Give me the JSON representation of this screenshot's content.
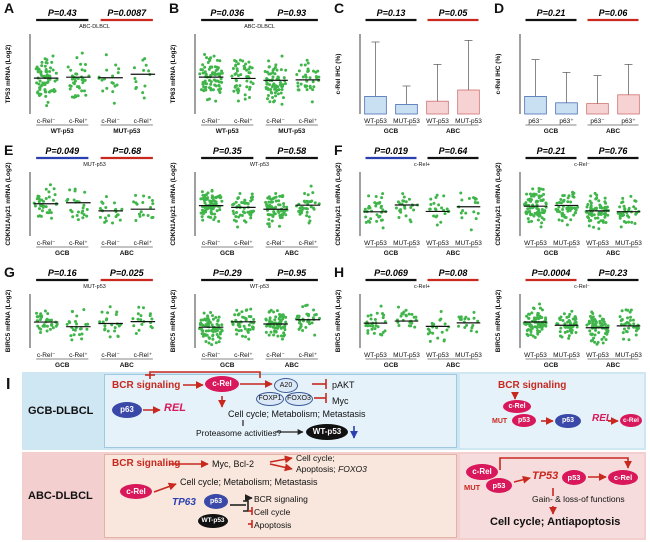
{
  "panels": {
    "A": {
      "label": "A",
      "p1": "P=0.43",
      "p2": "P=0.0087",
      "subtitle": "ABC-DLBCL",
      "ylabel": "TP53 mRNA (Log2)",
      "ticks": [
        "c-Rel⁻",
        "c-Rel⁺",
        "c-Rel⁻",
        "c-Rel⁺"
      ],
      "groups": [
        "WT-p53",
        "MUT-p53"
      ]
    },
    "B": {
      "label": "B",
      "p1": "P=0.036",
      "p2": "P=0.93",
      "subtitle": "ABC-DLBCL",
      "ylabel": "TP63 mRNA (Log2)",
      "ticks": [
        "c-Rel⁻",
        "c-Rel⁺",
        "c-Rel⁻",
        "c-Rel⁺"
      ],
      "groups": [
        "WT-p53",
        "MUT-p53"
      ]
    },
    "C": {
      "label": "C",
      "p1": "P=0.13",
      "p2": "P=0.05",
      "ylabel": "c-Rel IHC (%)",
      "ticks": [
        "WT-p53",
        "MUT-p53",
        "WT-p53",
        "MUT-p53"
      ],
      "groups": [
        "GCB",
        "ABC"
      ]
    },
    "D": {
      "label": "D",
      "p1": "P=0.21",
      "p2": "P=0.06",
      "ylabel": "c-Rel IHC (%)",
      "ticks": [
        "p63⁻",
        "p63⁺",
        "p63⁻",
        "p63⁺"
      ],
      "groups": [
        "GCB",
        "ABC"
      ]
    },
    "E1": {
      "label": "E",
      "p1": "P=0.049",
      "p2": "P=0.68",
      "subtitle": "MUT-p53",
      "ylabel": "CDKN1A/p21 mRNA (Log2)",
      "ticks": [
        "c-Rel⁻",
        "c-Rel⁺",
        "c-Rel⁻",
        "c-Rel⁺"
      ],
      "groups": [
        "GCB",
        "ABC"
      ]
    },
    "E2": {
      "p1": "P=0.35",
      "p2": "P=0.58",
      "subtitle": "WT-p53",
      "ylabel": "CDKN1A/p21 mRNA (Log2)",
      "ticks": [
        "c-Rel⁻",
        "c-Rel⁺",
        "c-Rel⁻",
        "c-Rel⁺"
      ],
      "groups": [
        "GCB",
        "ABC"
      ]
    },
    "F1": {
      "label": "F",
      "p1": "P=0.019",
      "p2": "P=0.64",
      "subtitle": "c-Rel+",
      "ylabel": "CDKN1A/p21 mRNA (Log2)",
      "ticks": [
        "WT-p53",
        "MUT-p53",
        "WT-p53",
        "MUT-p53"
      ],
      "groups": [
        "GCB",
        "ABC"
      ]
    },
    "F2": {
      "p1": "P=0.21",
      "p2": "P=0.76",
      "subtitle": "c-Rel⁻",
      "ylabel": "CDKN1A/p21 mRNA (Log2)",
      "ticks": [
        "WT-p53",
        "MUT-p53",
        "WT-p53",
        "MUT-p53"
      ],
      "groups": [
        "GCB",
        "ABC"
      ]
    },
    "G1": {
      "label": "G",
      "p1": "P=0.16",
      "p2": "P=0.025",
      "subtitle": "MUT-p53",
      "ylabel": "BIRC5 mRNA (Log2)",
      "ticks": [
        "c-Rel⁻",
        "c-Rel⁺",
        "c-Rel⁻",
        "c-Rel⁺"
      ],
      "groups": [
        "GCB",
        "ABC"
      ]
    },
    "G2": {
      "p1": "P=0.29",
      "p2": "P=0.95",
      "subtitle": "WT-p53",
      "ylabel": "BIRC5 mRNA (Log2)",
      "ticks": [
        "c-Rel⁻",
        "c-Rel⁺",
        "c-Rel⁻",
        "c-Rel⁺"
      ],
      "groups": [
        "GCB",
        "ABC"
      ]
    },
    "H1": {
      "label": "H",
      "p1": "P=0.069",
      "p2": "P=0.08",
      "subtitle": "c-Rel+",
      "ylabel": "BIRC5 mRNA (Log2)",
      "ticks": [
        "WT-p53",
        "MUT-p53",
        "WT-p53",
        "MUT-p53"
      ],
      "groups": [
        "GCB",
        "ABC"
      ]
    },
    "H2": {
      "p1": "P=0.0004",
      "p2": "P=0.23",
      "subtitle": "c-Rel⁻",
      "ylabel": "BIRC5 mRNA (Log2)",
      "ticks": [
        "WT-p53",
        "MUT-p53",
        "WT-p53",
        "MUT-p53"
      ],
      "groups": [
        "GCB",
        "ABC"
      ]
    }
  },
  "panelI": {
    "label": "I",
    "gcb_title": "GCB-DLBCL",
    "abc_title": "ABC-DLBCL",
    "bcr": "BCR signaling",
    "crel": "c-Rel",
    "a20": "A20",
    "foxp1": "FOXP1",
    "foxo3": "FOXO3",
    "pakt": "pAKT",
    "myc": "Myc",
    "p63": "p63",
    "rel": "REL",
    "cellcycle1": "Cell cycle; Metabolism; Metastasis",
    "proteasome": "Proteasome activities?",
    "wtp53": "WT-p53",
    "mut": "MUT",
    "p53": "p53",
    "myc_bcl2": "Myc, Bcl-2",
    "cellcycle_abc": "Cell cycle;",
    "apoptosis_foxo3a": "Apoptosis; ",
    "apoptosis_foxo3b": "FOXO3",
    "cellcycle2": "Cell cycle; Metabolism; Metastasis",
    "tp63": "TP63",
    "bcr_sig": "BCR signaling",
    "cc": "Cell cycle",
    "apo": "Apoptosis",
    "tp53": "TP53",
    "gain_loss": "Gain- & loss-of functions",
    "final": "Cell cycle; Antiapoptosis"
  }
}
